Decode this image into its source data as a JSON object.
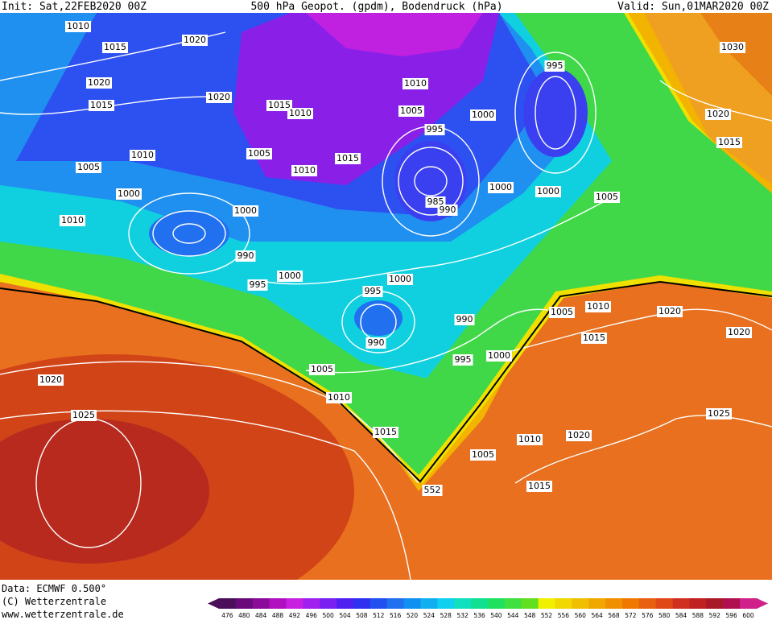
{
  "header": {
    "init": "Init: Sat,22FEB2020 00Z",
    "title": "500 hPa Geopot. (gpdm), Bodendruck (hPa)",
    "valid": "Valid: Sun,01MAR2020 00Z"
  },
  "isobar_labels": [
    "1010",
    "1015",
    "1020",
    "1020",
    "1015",
    "1020",
    "1015",
    "1010",
    "1005",
    "1010",
    "1015",
    "1010",
    "1005",
    "1000",
    "1010",
    "1000",
    "990",
    "995",
    "1000",
    "1010",
    "1005",
    "1000",
    "995",
    "995",
    "985",
    "990",
    "1000",
    "1000",
    "1005",
    "1020",
    "1015",
    "1030",
    "995",
    "1000",
    "990",
    "990",
    "995",
    "1000",
    "1005",
    "1010",
    "1015",
    "1020",
    "1020",
    "1005",
    "1010",
    "1015",
    "1025",
    "1020",
    "1010",
    "1020",
    "1005",
    "1015",
    "1025",
    "552"
  ],
  "footer": {
    "data": "Data: ECMWF  0.500°",
    "copyright": "(C) Wetterzentrale",
    "url": "www.wetterzentrale.de"
  },
  "colorbar": {
    "labels": [
      476,
      480,
      484,
      488,
      492,
      496,
      500,
      504,
      508,
      512,
      516,
      520,
      524,
      528,
      532,
      536,
      540,
      544,
      548,
      552,
      556,
      560,
      564,
      568,
      572,
      576,
      580,
      584,
      588,
      592,
      596,
      600
    ],
    "colors": [
      "#4b0f5a",
      "#6a0a7a",
      "#8c0a9a",
      "#b010c0",
      "#c820e0",
      "#a020f0",
      "#7a20f0",
      "#5020f0",
      "#3030f0",
      "#2050f0",
      "#2070f0",
      "#1090f0",
      "#10b0f0",
      "#10d0f0",
      "#10e0c0",
      "#10e090",
      "#20e060",
      "#40e040",
      "#60e020",
      "#f0f000",
      "#f0d800",
      "#f0c000",
      "#f0a800",
      "#f09000",
      "#f07800",
      "#e86010",
      "#e04818",
      "#d03020",
      "#c02020",
      "#a81828",
      "#b01050",
      "#d0208a"
    ]
  }
}
